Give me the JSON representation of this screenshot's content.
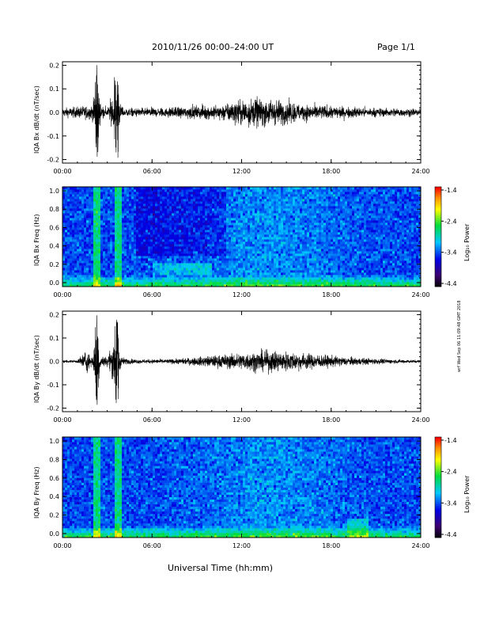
{
  "header": {
    "title": "2010/11/26  00:00–24:00 UT",
    "page": "Page 1/1"
  },
  "stamp": "wrf Wed Sep 06 11:09:48 GMT 2018",
  "xlabel": "Universal Time (hh:mm)",
  "colors": {
    "trace": "#000000"
  },
  "chart_data": [
    {
      "type": "line",
      "title": "",
      "ylabel": "IQA Bx dB/dt (nT/sec)",
      "xlabel": "",
      "xlim": [
        0,
        24
      ],
      "ylim": [
        -0.2,
        0.2
      ],
      "x_ticks": [
        "00:00",
        "06:00",
        "12:00",
        "18:00",
        "24:00"
      ],
      "y_ticks": [
        "-0.2",
        "-0.1",
        "0.0",
        "0.1",
        "0.2"
      ],
      "envelope": {
        "x": [
          0,
          1,
          2,
          2.3,
          2.6,
          3,
          3.7,
          3.85,
          4.2,
          5,
          6,
          7,
          8,
          9,
          10,
          11,
          12,
          13,
          14,
          15,
          16,
          17,
          18,
          19,
          20,
          21,
          22,
          23,
          24
        ],
        "amplitude": [
          0.03,
          0.04,
          0.05,
          0.21,
          0.05,
          0.03,
          0.21,
          0.06,
          0.03,
          0.03,
          0.03,
          0.035,
          0.04,
          0.045,
          0.05,
          0.06,
          0.09,
          0.1,
          0.09,
          0.08,
          0.06,
          0.05,
          0.045,
          0.04,
          0.035,
          0.03,
          0.03,
          0.028,
          0.025
        ]
      }
    },
    {
      "type": "heatmap",
      "title": "",
      "ylabel": "IQA Bx Freq (Hz)",
      "xlabel": "",
      "xlim": [
        0,
        24
      ],
      "ylim": [
        0.0,
        1.0
      ],
      "x_ticks": [
        "00:00",
        "06:00",
        "12:00",
        "18:00",
        "24:00"
      ],
      "y_ticks": [
        "0.0",
        "0.2",
        "0.4",
        "0.6",
        "0.8",
        "1.0"
      ],
      "colorbar": {
        "label": "Log₁₀ Power",
        "min": -4.4,
        "max": -1.4,
        "ticks": [
          "-1.4",
          "-2.4",
          "-3.4",
          "-4.4"
        ]
      },
      "features": {
        "spikes_hours": [
          2.3,
          3.75
        ],
        "band_hours": [
          6.0,
          10.0
        ],
        "band_freq_hz": [
          0.13,
          0.25
        ]
      }
    },
    {
      "type": "line",
      "title": "",
      "ylabel": "IQA By dB/dt (nT/sec)",
      "xlabel": "",
      "xlim": [
        0,
        24
      ],
      "ylim": [
        -0.2,
        0.2
      ],
      "x_ticks": [
        "00:00",
        "06:00",
        "12:00",
        "18:00",
        "24:00"
      ],
      "y_ticks": [
        "-0.2",
        "-0.1",
        "0.0",
        "0.1",
        "0.2"
      ],
      "envelope": {
        "x": [
          0,
          1,
          1.6,
          2,
          2.3,
          2.6,
          3,
          3.7,
          3.85,
          4.2,
          5,
          6,
          7,
          8,
          9,
          10,
          11,
          12,
          13,
          14,
          15,
          16,
          17,
          18,
          19,
          20,
          21,
          22,
          23,
          24
        ],
        "amplitude": [
          0.01,
          0.01,
          0.08,
          0.03,
          0.21,
          0.04,
          0.03,
          0.21,
          0.05,
          0.02,
          0.015,
          0.015,
          0.015,
          0.02,
          0.03,
          0.04,
          0.05,
          0.06,
          0.07,
          0.075,
          0.07,
          0.06,
          0.05,
          0.04,
          0.03,
          0.025,
          0.02,
          0.015,
          0.012,
          0.01
        ]
      }
    },
    {
      "type": "heatmap",
      "title": "",
      "ylabel": "IQA By Freq (Hz)",
      "xlabel": "",
      "xlim": [
        0,
        24
      ],
      "ylim": [
        0.0,
        1.0
      ],
      "x_ticks": [
        "00:00",
        "06:00",
        "12:00",
        "18:00",
        "24:00"
      ],
      "y_ticks": [
        "0.0",
        "0.2",
        "0.4",
        "0.6",
        "0.8",
        "1.0"
      ],
      "colorbar": {
        "label": "Log₁₀ Power",
        "min": -4.4,
        "max": -1.4,
        "ticks": [
          "-1.4",
          "-2.4",
          "-3.4",
          "-4.4"
        ]
      },
      "features": {
        "spikes_hours": [
          2.3,
          3.75
        ],
        "band_hours": [],
        "band_freq_hz": []
      }
    }
  ]
}
